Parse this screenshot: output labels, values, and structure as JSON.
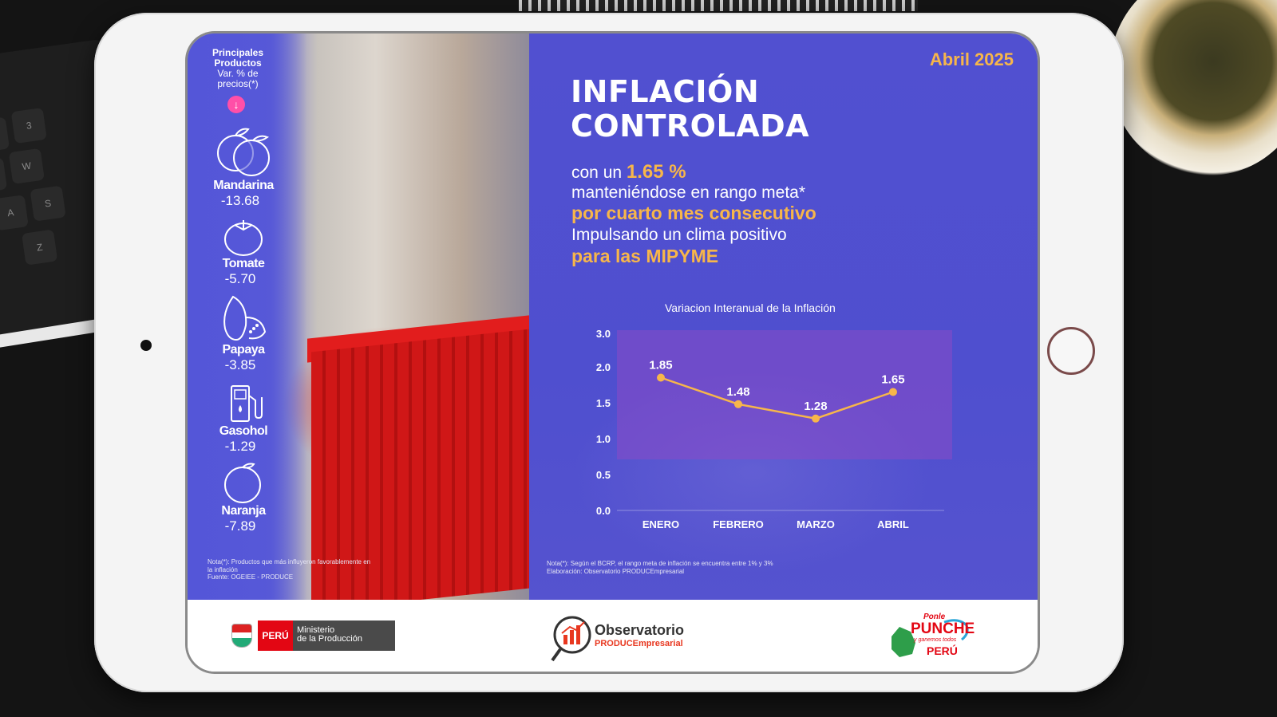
{
  "products": {
    "header_line1": "Principales",
    "header_line2": "Productos",
    "header_line3": "Var. % de",
    "header_line4": "precios(*)",
    "items": [
      {
        "name": "Mandarina",
        "value": "-13.68",
        "icon": "mandarin-icon"
      },
      {
        "name": "Tomate",
        "value": "-5.70",
        "icon": "tomato-icon"
      },
      {
        "name": "Papaya",
        "value": "-3.85",
        "icon": "papaya-icon"
      },
      {
        "name": "Gasohol",
        "value": "-1.29",
        "icon": "fuel-pump-icon"
      },
      {
        "name": "Naranja",
        "value": "-7.89",
        "icon": "orange-icon"
      }
    ],
    "note_line1": "Nota(*): Productos que más influyeron favorablemente en",
    "note_line2": "la inflación",
    "note_line3": "Fuente: OGEIEE - PRODUCE"
  },
  "main": {
    "date": "Abril 2025",
    "headline_line1": "INFLACIÓN",
    "headline_line2": "CONTROLADA",
    "line1_prefix": "con un",
    "line1_value": "1.65 %",
    "line2": "manteniéndose en rango meta*",
    "line3": "por cuarto mes consecutivo",
    "line4": "Impulsando un clima positivo",
    "line5": "para las MIPYME",
    "note_line1": "Nota(*): Según el BCRP, el rango meta de inflación se encuentra entre 1% y 3%",
    "note_line2": "Elaboración: Observatorio PRODUCEmpresarial"
  },
  "chart_data": {
    "type": "line",
    "title": "Variacion Interanual de la Inflación",
    "categories": [
      "ENERO",
      "FEBRERO",
      "MARZO",
      "ABRIL"
    ],
    "values": [
      1.85,
      1.48,
      1.28,
      1.65
    ],
    "value_labels": [
      "1.85",
      "1.48",
      "1.28",
      "1.65"
    ],
    "y_ticks": [
      "0.0",
      "0.5",
      "1.0",
      "1.5",
      "2.0",
      "3.0"
    ],
    "target_band": [
      1.0,
      3.0
    ],
    "line_color": "#f7b64a",
    "band_color": "#8a4bc6",
    "grid": false
  },
  "footer": {
    "peru_label": "PERÚ",
    "ministry_line1": "Ministerio",
    "ministry_line2": "de la Producción",
    "observatorio_name": "Observatorio",
    "observatorio_sub": "PRODUCEmpresarial",
    "punche_line1": "Ponle",
    "punche_line2": "PUNCHE",
    "punche_line3": "y ganemos todos",
    "punche_line4": "PERÚ"
  },
  "colors": {
    "panel_blue": "#5150d0",
    "accent_orange": "#f7b64a",
    "arrow_pink": "#ff4fa8"
  }
}
